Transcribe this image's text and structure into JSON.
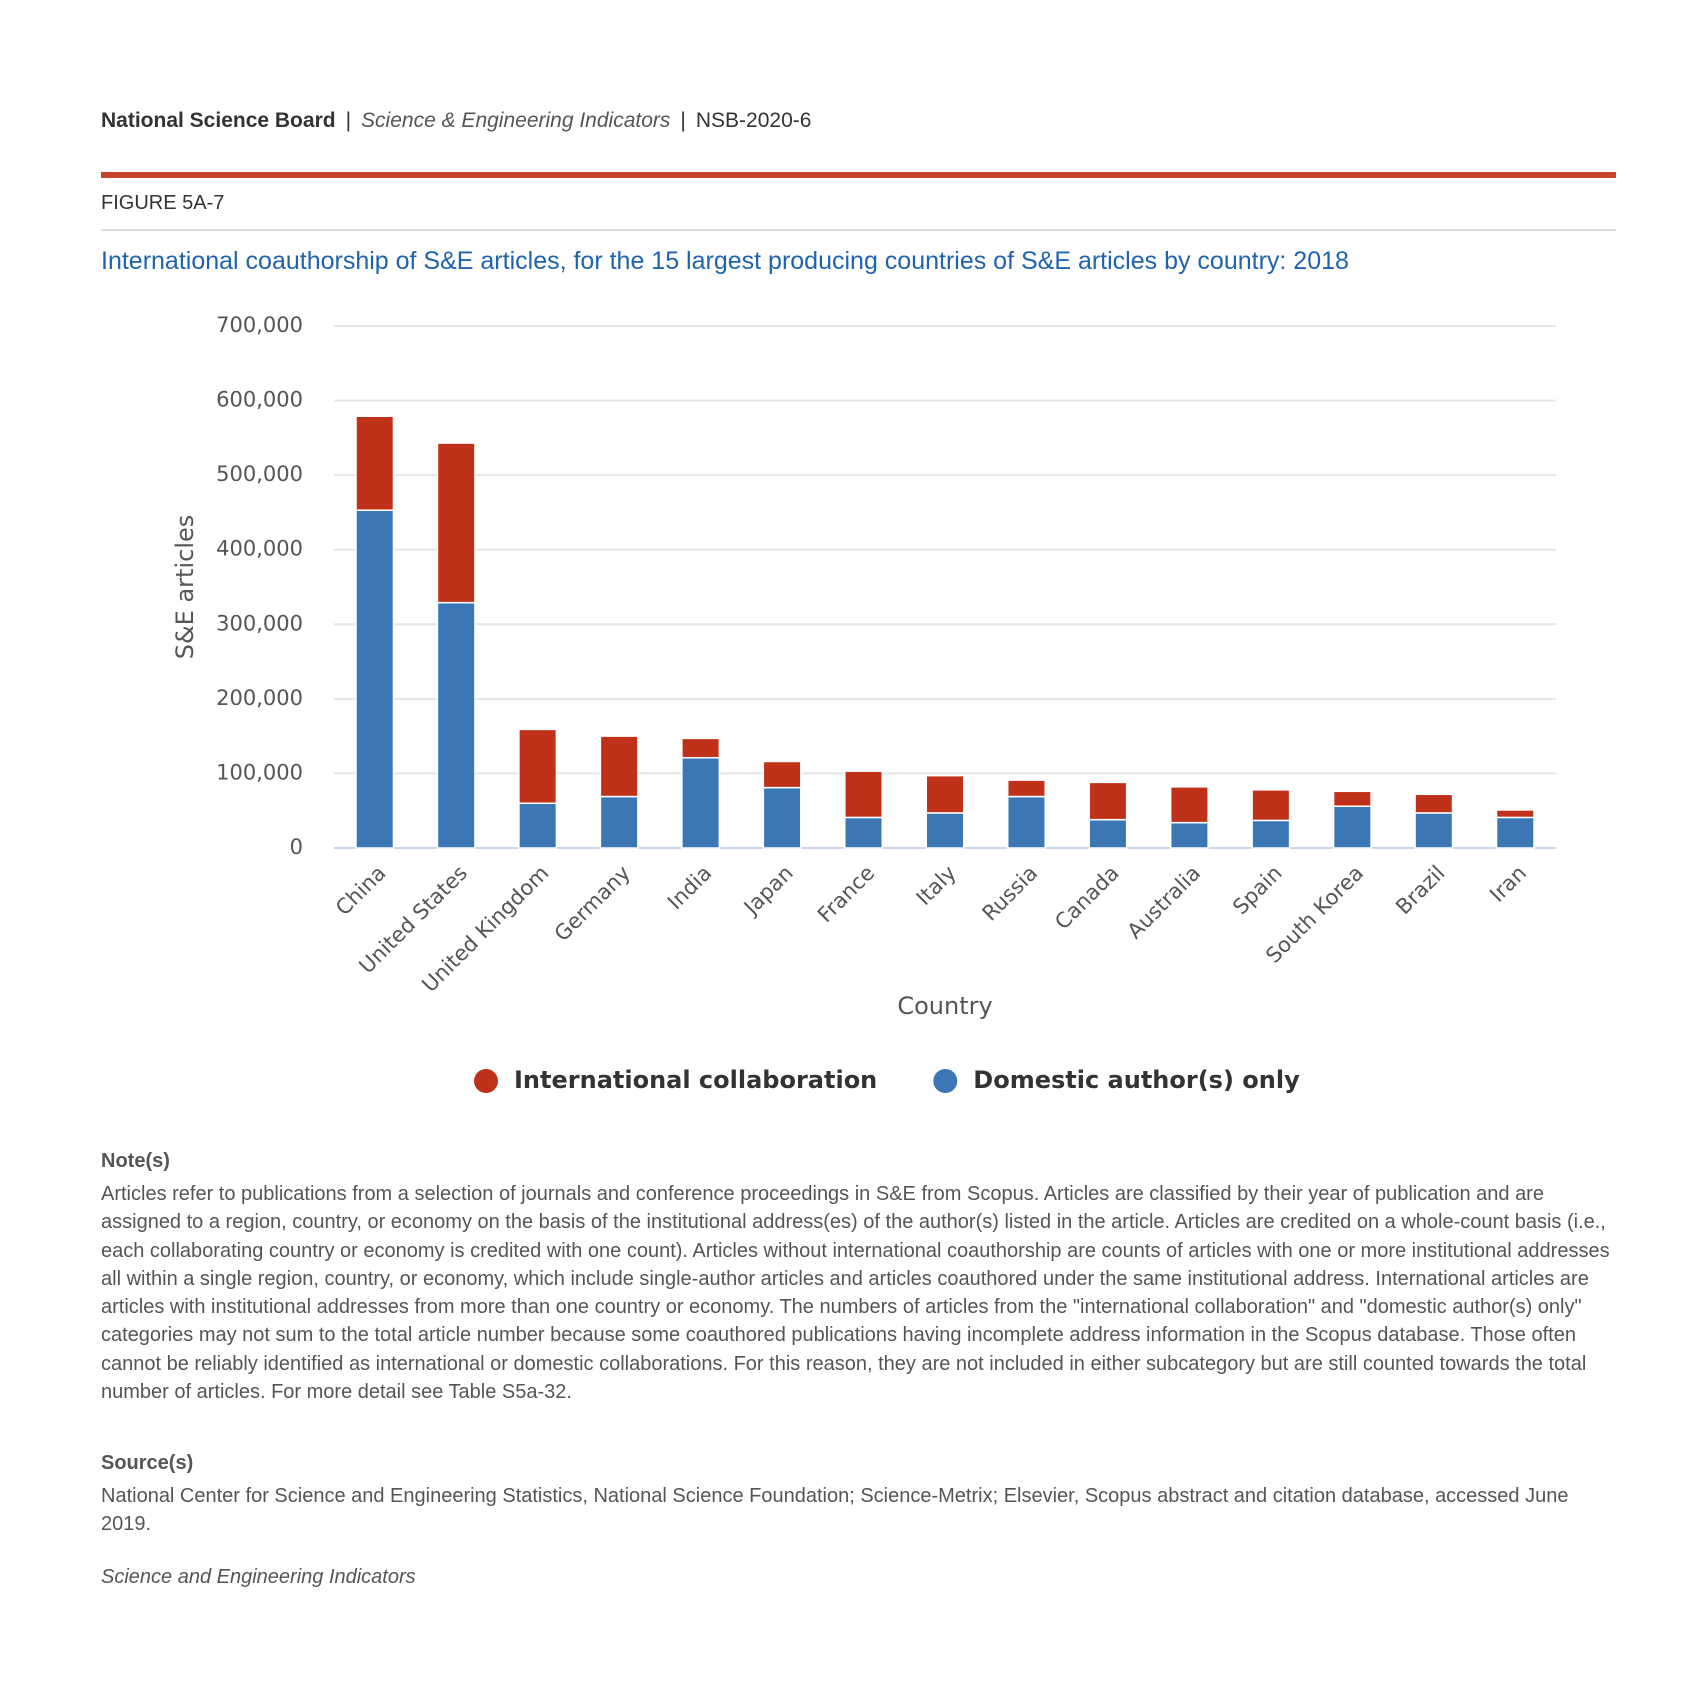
{
  "header": {
    "org": "National Science Board",
    "separator": "|",
    "publication": "Science & Engineering Indicators",
    "id": "NSB-2020-6"
  },
  "figure_label": "FIGURE 5A-7",
  "chart_data": {
    "type": "stacked_bar",
    "title": "International coauthorship of S&E articles, for the 15 largest producing countries of S&E articles by country: 2018",
    "x_label": "Country",
    "y_label": "S&E articles",
    "categories": [
      "China",
      "United States",
      "United Kingdom",
      "Germany",
      "India",
      "Japan",
      "France",
      "Italy",
      "Russia",
      "Canada",
      "Australia",
      "Spain",
      "South Korea",
      "Brazil",
      "Iran"
    ],
    "series": [
      {
        "name": "International collaboration",
        "color": "#c03119",
        "values": [
          126000,
          214000,
          99000,
          81000,
          26000,
          35000,
          62000,
          50000,
          22000,
          50000,
          48000,
          41000,
          20000,
          25000,
          10000
        ]
      },
      {
        "name": "Domestic author(s) only",
        "color": "#3b77b4",
        "values": [
          453000,
          329000,
          60000,
          69000,
          121000,
          81000,
          41000,
          47000,
          69000,
          38000,
          34000,
          37000,
          56000,
          47000,
          41000
        ]
      }
    ],
    "ylim": [
      0,
      700000
    ],
    "yticks": [
      0,
      {
        "value": 100000,
        "label": "100,000"
      },
      {
        "value": 200000,
        "label": "200,000"
      },
      {
        "value": 300000,
        "label": "300,000"
      },
      {
        "value": 400000,
        "label": "400,000"
      },
      {
        "value": 500000,
        "label": "500,000"
      },
      {
        "value": 600000,
        "label": "600,000"
      },
      {
        "value": 700000,
        "label": "700,000"
      }
    ],
    "grid": true
  },
  "notes": {
    "heading": "Note(s)",
    "text": "Articles refer to publications from a selection of journals and conference proceedings in S&E from Scopus. Articles are classified by their year of publication and are assigned to a region, country, or economy on the basis of the institutional address(es) of the author(s) listed in the article. Articles are credited on a whole-count basis (i.e., each collaborating country or economy is credited with one count). Articles without international coauthorship are counts of articles with one or more institutional addresses all within a single region, country, or economy, which include single-author articles and articles coauthored under the same institutional address. International articles are articles with institutional addresses from more than one country or economy. The numbers of articles from the \"international collaboration\" and \"domestic author(s) only\" categories may not sum to the total article number because some coauthored publications having incomplete address information in the Scopus database. Those often cannot be reliably identified as international or domestic collaborations. For this reason, they are not included in either subcategory but are still counted towards the total number of articles. For more detail see Table S5a-32."
  },
  "sources": {
    "heading": "Source(s)",
    "text": "National Center for Science and Engineering Statistics, National Science Foundation; Science-Metrix; Elsevier, Scopus abstract and citation database, accessed June 2019."
  },
  "footer": "Science and Engineering Indicators"
}
